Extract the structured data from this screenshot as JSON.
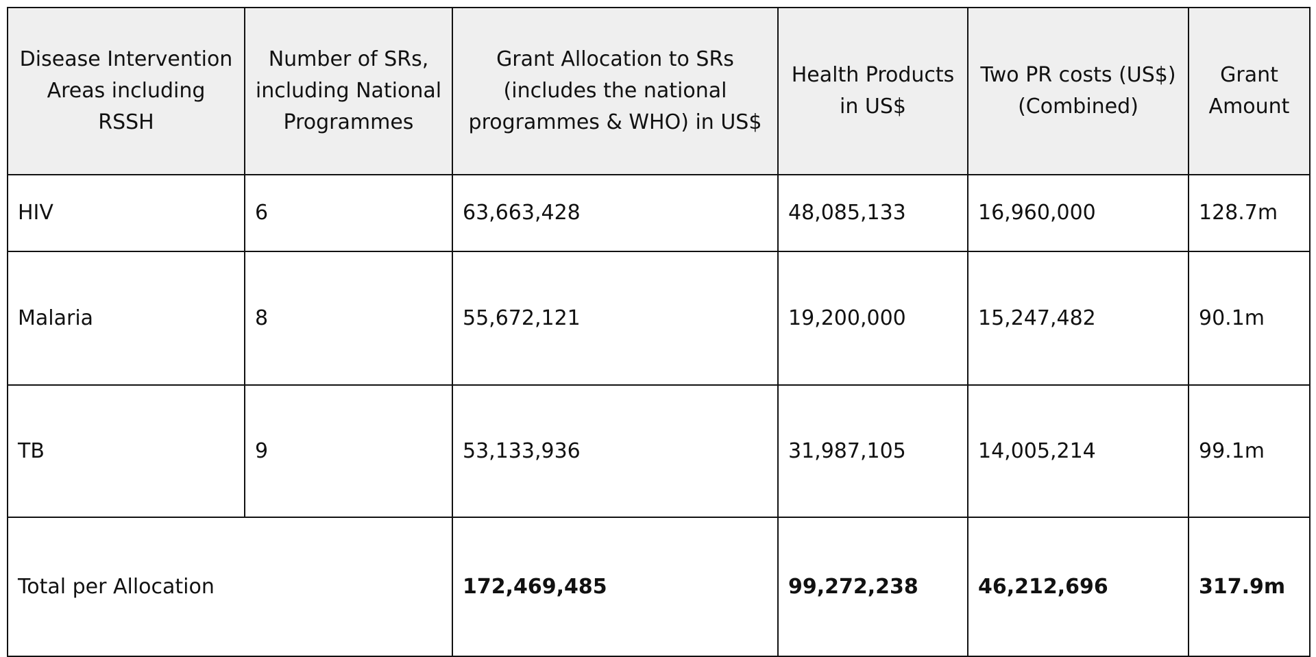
{
  "table": {
    "header": [
      "Disease Intervention Areas including RSSH",
      "Number of SRs, including National Programmes",
      "Grant Allocation to SRs (includes the national programmes & WHO) in US$",
      "Health Products in US$",
      "Two PR costs (US$) (Combined)",
      "Grant Amount"
    ],
    "rows": [
      [
        "HIV",
        "6",
        "63,663,428",
        "48,085,133",
        "16,960,000",
        "128.7m"
      ],
      [
        "Malaria",
        "8",
        "55,672,121",
        "19,200,000",
        "15,247,482",
        "90.1m"
      ],
      [
        "TB",
        "9",
        "53,133,936",
        "31,987,105",
        "14,005,214",
        "99.1m"
      ]
    ],
    "total": {
      "label": "Total per Allocation",
      "values": [
        "172,469,485",
        "99,272,238",
        "46,212,696",
        "317.9m"
      ]
    }
  }
}
